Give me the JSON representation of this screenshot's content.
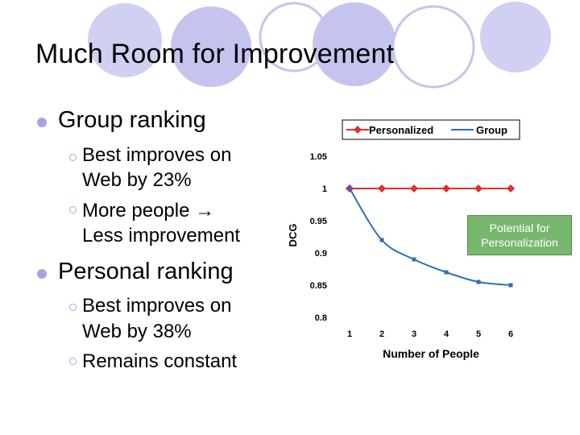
{
  "title": "Much Room for Improvement",
  "bullets": [
    {
      "text": "Group ranking",
      "sub": [
        {
          "line1": "Best improves on",
          "line2": "Web by 23%"
        },
        {
          "line1": "More people",
          "arrow": "→",
          "line2": "Less improvement"
        }
      ]
    },
    {
      "text": "Personal ranking",
      "sub": [
        {
          "line1": "Best improves on",
          "line2": "Web by 38%"
        },
        {
          "line1": "Remains constant"
        }
      ]
    }
  ],
  "callout": {
    "line1": "Potential for",
    "line2": "Personalization"
  },
  "colors": {
    "decor_circle": "#a6a6e6",
    "personalized": "#e0302a",
    "group": "#2c6fb5",
    "callout": "#78b86e"
  },
  "chart_data": {
    "type": "line",
    "x": [
      1,
      2,
      3,
      4,
      5,
      6
    ],
    "series": [
      {
        "name": "Personalized",
        "values": [
          1.0,
          1.0,
          1.0,
          1.0,
          1.0,
          1.0
        ]
      },
      {
        "name": "Group",
        "values": [
          1.0,
          0.92,
          0.89,
          0.87,
          0.855,
          0.85
        ]
      }
    ],
    "xlabel": "Number of People",
    "ylabel": "DCG",
    "yticks": [
      "1.05",
      "1",
      "0.95",
      "0.9",
      "0.85",
      "0.8"
    ],
    "ylim": [
      0.8,
      1.05
    ],
    "legend": "top",
    "grid": false
  }
}
